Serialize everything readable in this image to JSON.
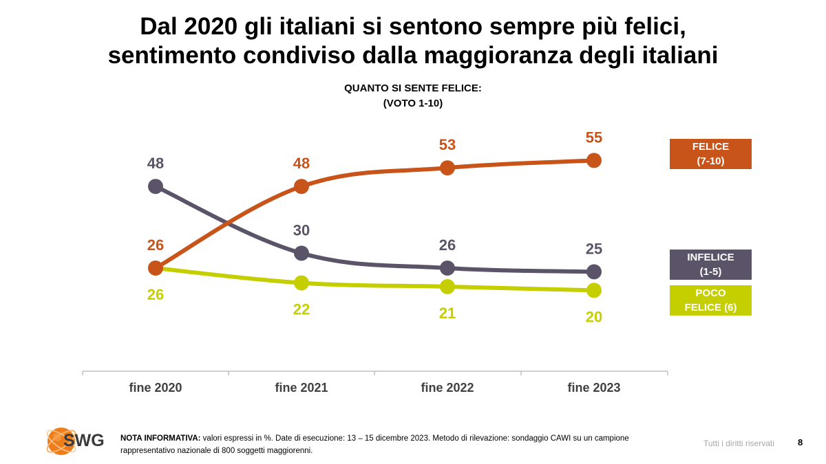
{
  "page": {
    "title_line1": "Dal 2020 gli italiani si sentono sempre più felici,",
    "title_line2": "sentimento condiviso dalla maggioranza degli italiani",
    "page_number": "8",
    "rights": "Tutti i diritti riservati"
  },
  "footer": {
    "logo_text": "SWG",
    "note_label": "NOTA INFORMATIVA:",
    "note_text_line1": " valori espressi in %. Date di esecuzione: 13 – 15 dicembre 2023. Metodo di rilevazione: sondaggio CAWI su un campione",
    "note_text_line2": "rappresentativo nazionale di 800 soggetti maggiorenni."
  },
  "chart_data": {
    "type": "line",
    "title_line1": "QUANTO SI SENTE FELICE:",
    "title_line2": "(VOTO 1-10)",
    "categories": [
      "fine 2020",
      "fine 2021",
      "fine 2022",
      "fine 2023"
    ],
    "ylim": [
      0,
      60
    ],
    "grid": false,
    "legend_position": "right",
    "series": [
      {
        "key": "felice",
        "name_line1": "FELICE",
        "name_line2": "(7-10)",
        "color": "#c8541a",
        "values": [
          26,
          48,
          53,
          55
        ],
        "label_pos": [
          "above",
          "above",
          "above",
          "above"
        ]
      },
      {
        "key": "infelice",
        "name_line1": "INFELICE",
        "name_line2": "(1-5)",
        "color": "#5b5368",
        "values": [
          48,
          30,
          26,
          25
        ],
        "label_pos": [
          "above",
          "above",
          "above",
          "above"
        ]
      },
      {
        "key": "poco",
        "name_line1": "POCO",
        "name_line2": "FELICE (6)",
        "color": "#c5cf00",
        "values": [
          26,
          22,
          21,
          20
        ],
        "label_pos": [
          "below",
          "below",
          "below",
          "below"
        ]
      }
    ]
  }
}
